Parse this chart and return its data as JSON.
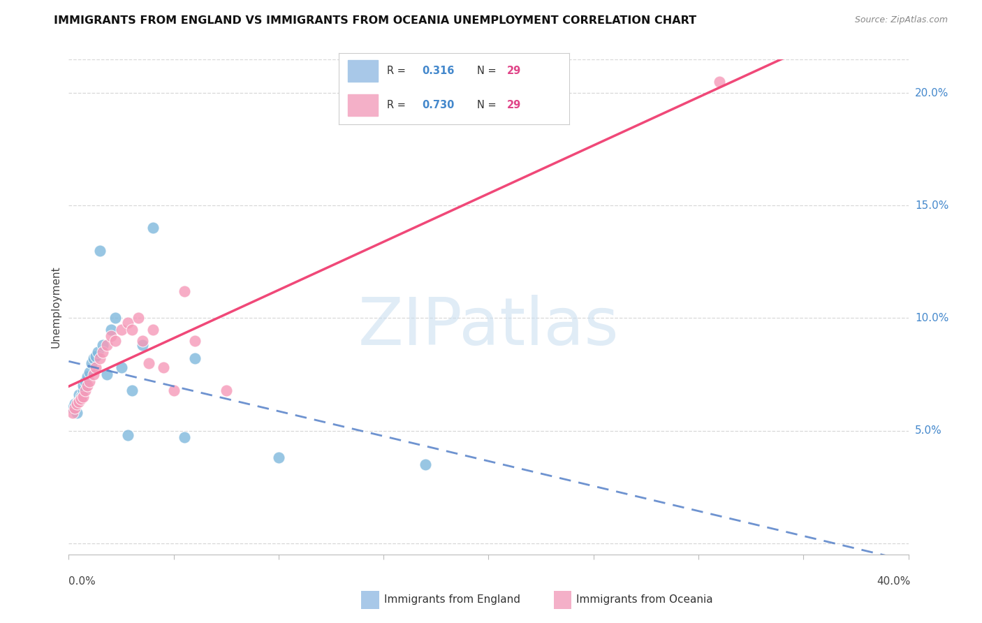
{
  "title": "IMMIGRANTS FROM ENGLAND VS IMMIGRANTS FROM OCEANIA UNEMPLOYMENT CORRELATION CHART",
  "source": "Source: ZipAtlas.com",
  "ylabel": "Unemployment",
  "right_ytick_vals": [
    0.05,
    0.1,
    0.15,
    0.2
  ],
  "right_ytick_labels": [
    "5.0%",
    "10.0%",
    "15.0%",
    "20.0%"
  ],
  "xlim": [
    0.0,
    0.4
  ],
  "ylim": [
    -0.005,
    0.215
  ],
  "england_color": "#7fb8dc",
  "oceania_color": "#f599b8",
  "england_line_color": "#5580c8",
  "oceania_line_color": "#f04878",
  "watermark_text": "ZIPatlas",
  "watermark_color": "#c8ddf0",
  "background_color": "#ffffff",
  "grid_color": "#d8d8d8",
  "england_x": [
    0.002,
    0.003,
    0.004,
    0.005,
    0.005,
    0.006,
    0.007,
    0.007,
    0.008,
    0.009,
    0.01,
    0.011,
    0.012,
    0.013,
    0.014,
    0.015,
    0.016,
    0.018,
    0.02,
    0.022,
    0.025,
    0.028,
    0.03,
    0.035,
    0.04,
    0.055,
    0.06,
    0.1,
    0.17
  ],
  "england_y": [
    0.06,
    0.062,
    0.058,
    0.064,
    0.066,
    0.065,
    0.068,
    0.07,
    0.072,
    0.074,
    0.076,
    0.08,
    0.082,
    0.083,
    0.085,
    0.13,
    0.088,
    0.075,
    0.095,
    0.1,
    0.078,
    0.048,
    0.068,
    0.088,
    0.14,
    0.047,
    0.082,
    0.038,
    0.035
  ],
  "oceania_x": [
    0.002,
    0.003,
    0.004,
    0.005,
    0.006,
    0.007,
    0.008,
    0.009,
    0.01,
    0.012,
    0.013,
    0.015,
    0.016,
    0.018,
    0.02,
    0.022,
    0.025,
    0.028,
    0.03,
    0.033,
    0.035,
    0.038,
    0.04,
    0.045,
    0.05,
    0.055,
    0.06,
    0.075,
    0.31
  ],
  "oceania_y": [
    0.058,
    0.06,
    0.062,
    0.063,
    0.064,
    0.065,
    0.068,
    0.07,
    0.072,
    0.075,
    0.078,
    0.082,
    0.085,
    0.088,
    0.092,
    0.09,
    0.095,
    0.098,
    0.095,
    0.1,
    0.09,
    0.08,
    0.095,
    0.078,
    0.068,
    0.112,
    0.09,
    0.068,
    0.205
  ]
}
